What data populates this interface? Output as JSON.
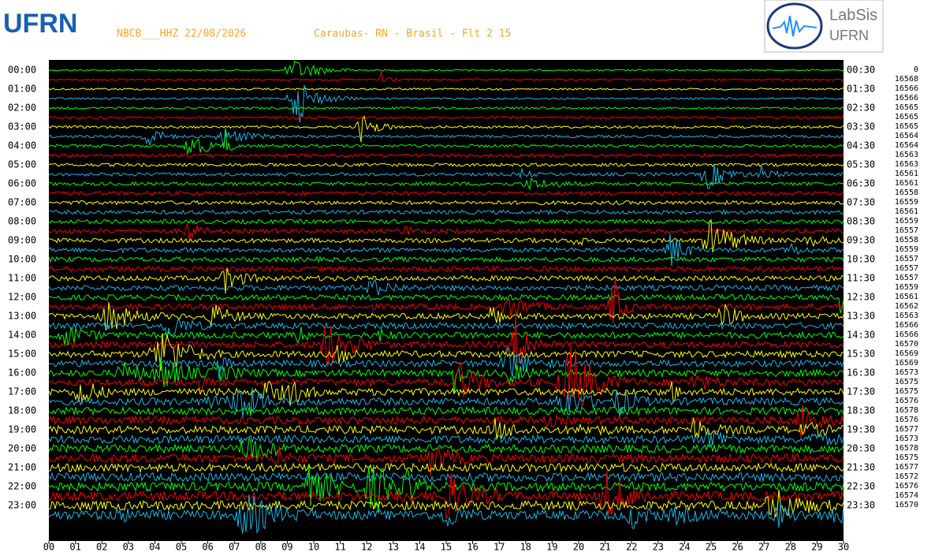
{
  "header": {
    "station": "NBCB___HHZ 22/08/2026",
    "location": "Caraubas- RN - Brasil - Flt 2 15",
    "logo_left": "UFRN",
    "logo_right_1": "LabSis",
    "logo_right_2": "UFRN"
  },
  "left_times": [
    "00:00",
    "01:00",
    "02:00",
    "03:00",
    "04:00",
    "05:00",
    "06:00",
    "07:00",
    "08:00",
    "09:00",
    "10:00",
    "11:00",
    "12:00",
    "13:00",
    "14:00",
    "15:00",
    "16:00",
    "17:00",
    "18:00",
    "19:00",
    "20:00",
    "21:00",
    "22:00",
    "23:00"
  ],
  "right_times": [
    "00:30",
    "01:30",
    "02:30",
    "03:30",
    "04:30",
    "05:30",
    "06:30",
    "07:30",
    "08:30",
    "09:30",
    "10:30",
    "11:30",
    "12:30",
    "13:30",
    "14:30",
    "15:30",
    "16:30",
    "17:30",
    "18:30",
    "19:30",
    "20:30",
    "21:30",
    "22:30",
    "23:30"
  ],
  "right_numbers": [
    "0",
    "16568",
    "16566",
    "16566",
    "16565",
    "16565",
    "16565",
    "16564",
    "16564",
    "16563",
    "16563",
    "16561",
    "16561",
    "16558",
    "16559",
    "16561",
    "16559",
    "16557",
    "16558",
    "16559",
    "16557",
    "16557",
    "16557",
    "16559",
    "16561",
    "16562",
    "16563",
    "16566",
    "16566",
    "16570",
    "16569",
    "16569",
    "16573",
    "16575",
    "16575",
    "16576",
    "16578",
    "16576",
    "16577",
    "16573",
    "16578",
    "16575",
    "16577",
    "16572",
    "16576",
    "16574",
    "16570"
  ],
  "x_ticks": [
    "00",
    "01",
    "02",
    "03",
    "04",
    "05",
    "06",
    "07",
    "08",
    "09",
    "10",
    "11",
    "12",
    "13",
    "14",
    "15",
    "16",
    "17",
    "18",
    "19",
    "20",
    "21",
    "22",
    "23",
    "24",
    "25",
    "26",
    "27",
    "28",
    "29",
    "30"
  ]
}
